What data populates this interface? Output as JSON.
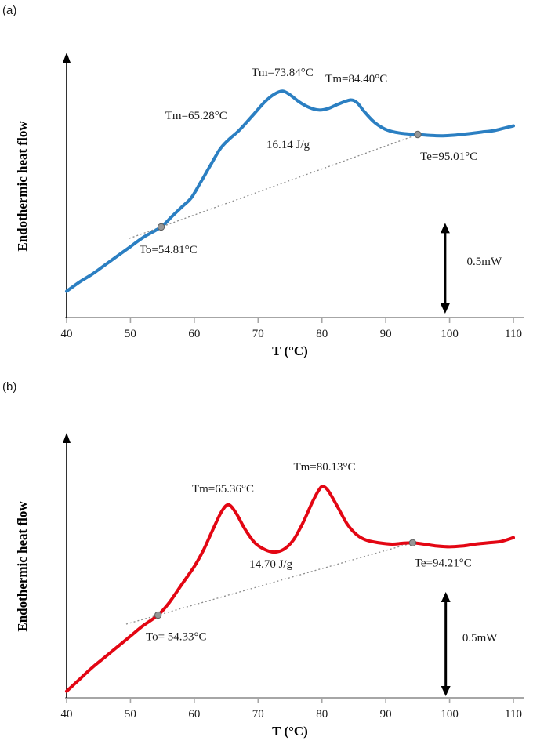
{
  "theme": {
    "curve_width": 4,
    "axis_color": "#a6a6a6",
    "text_color": "#1a1a1a",
    "baseline_color": "#8c8c8c",
    "marker_fill": "#969696",
    "marker_stroke": "#5f5f5f",
    "arrow_color": "#000000"
  },
  "chart_data": [
    {
      "panel_label": "(a)",
      "type": "line",
      "xlabel": "T (°C)",
      "ylabel": "Endothermic heat flow",
      "xlim": [
        40,
        110
      ],
      "ylim": [
        0,
        1
      ],
      "xticks": [
        40,
        50,
        60,
        70,
        80,
        90,
        100,
        110
      ],
      "color": "#2b7fc2",
      "values": {
        "To_C": 54.81,
        "Tm_C": [
          65.28,
          73.84,
          84.4
        ],
        "Te_C": 95.01,
        "enthalpy_J_per_g": 16.14,
        "scale_bar": "0.5mW"
      },
      "curve": {
        "x": [
          40,
          42,
          44,
          46,
          48,
          50,
          52,
          54.81,
          56.5,
          58,
          59.5,
          61,
          62.5,
          64,
          65.28,
          67,
          69,
          71,
          72.5,
          73.84,
          75,
          76.5,
          78,
          79.5,
          81,
          82.5,
          84.4,
          85.5,
          86.5,
          88,
          89.5,
          91,
          93,
          95.01,
          97,
          99,
          101,
          103,
          105,
          107,
          110
        ],
        "y": [
          0.1,
          0.135,
          0.165,
          0.2,
          0.235,
          0.27,
          0.305,
          0.345,
          0.385,
          0.42,
          0.455,
          0.515,
          0.578,
          0.64,
          0.675,
          0.712,
          0.765,
          0.82,
          0.85,
          0.862,
          0.848,
          0.82,
          0.8,
          0.79,
          0.796,
          0.812,
          0.828,
          0.818,
          0.788,
          0.748,
          0.722,
          0.708,
          0.7,
          0.697,
          0.693,
          0.692,
          0.695,
          0.7,
          0.706,
          0.712,
          0.73
        ]
      },
      "onset_point": {
        "x": 54.81,
        "y": 0.345
      },
      "end_point": {
        "x": 95.01,
        "y": 0.697
      },
      "annotations": [
        {
          "text": "Tm=73.84°C",
          "x": 73.8,
          "y": 0.92,
          "anchor": "middle"
        },
        {
          "text": "Tm=84.40°C",
          "x": 85.4,
          "y": 0.895,
          "anchor": "middle"
        },
        {
          "text": "Tm=65.28°C",
          "x": 60.3,
          "y": 0.755,
          "anchor": "middle"
        },
        {
          "text": "16.14 J/g",
          "x": 74.7,
          "y": 0.645,
          "anchor": "middle"
        },
        {
          "text": "Te=95.01°C",
          "x": 95.4,
          "y": 0.6,
          "anchor": "start"
        },
        {
          "text": "To=54.81°C",
          "x": 51.4,
          "y": 0.245,
          "anchor": "start"
        }
      ],
      "scalebar": {
        "label": "0.5mW",
        "x": 99.3,
        "y_top": 0.36,
        "y_bottom": 0.015,
        "label_x": 102.7,
        "label_y": 0.2
      }
    },
    {
      "panel_label": "(b)",
      "type": "line",
      "xlabel": "T (°C)",
      "ylabel": "Endothermic heat flow",
      "xlim": [
        40,
        110
      ],
      "ylim": [
        0,
        1
      ],
      "xticks": [
        40,
        50,
        60,
        70,
        80,
        90,
        100,
        110
      ],
      "color": "#e30613",
      "values": {
        "To_C": 54.33,
        "Tm_C": [
          65.36,
          80.13
        ],
        "Te_C": 94.21,
        "enthalpy_J_per_g": 14.7,
        "scale_bar": "0.5mW"
      },
      "curve": {
        "x": [
          40,
          42,
          44,
          46,
          48,
          50,
          52,
          54.33,
          56,
          58,
          60,
          61.5,
          63,
          64.3,
          65.36,
          66.5,
          68,
          69.5,
          71,
          72.5,
          74,
          75.5,
          77,
          78.5,
          79.5,
          80.13,
          81,
          82.5,
          84,
          85.5,
          87,
          89,
          91,
          92.5,
          94.21,
          96,
          98,
          100,
          102,
          104,
          106,
          108,
          110
        ],
        "y": [
          0.025,
          0.07,
          0.115,
          0.155,
          0.195,
          0.235,
          0.275,
          0.315,
          0.36,
          0.43,
          0.5,
          0.565,
          0.645,
          0.71,
          0.735,
          0.705,
          0.64,
          0.59,
          0.565,
          0.555,
          0.565,
          0.6,
          0.665,
          0.745,
          0.79,
          0.805,
          0.788,
          0.725,
          0.66,
          0.62,
          0.6,
          0.59,
          0.585,
          0.588,
          0.59,
          0.585,
          0.578,
          0.575,
          0.578,
          0.585,
          0.59,
          0.595,
          0.61
        ]
      },
      "onset_point": {
        "x": 54.33,
        "y": 0.315
      },
      "end_point": {
        "x": 94.21,
        "y": 0.59
      },
      "annotations": [
        {
          "text": "Tm=65.36°C",
          "x": 64.5,
          "y": 0.782,
          "anchor": "middle"
        },
        {
          "text": "Tm=80.13°C",
          "x": 80.4,
          "y": 0.866,
          "anchor": "middle"
        },
        {
          "text": "14.70 J/g",
          "x": 72.0,
          "y": 0.495,
          "anchor": "middle"
        },
        {
          "text": "Te=94.21°C",
          "x": 94.5,
          "y": 0.5,
          "anchor": "start"
        },
        {
          "text": "To= 54.33°C",
          "x": 52.4,
          "y": 0.22,
          "anchor": "start"
        }
      ],
      "scalebar": {
        "label": "0.5mW",
        "x": 99.4,
        "y_top": 0.403,
        "y_bottom": 0.006,
        "label_x": 102.0,
        "label_y": 0.215
      }
    }
  ]
}
